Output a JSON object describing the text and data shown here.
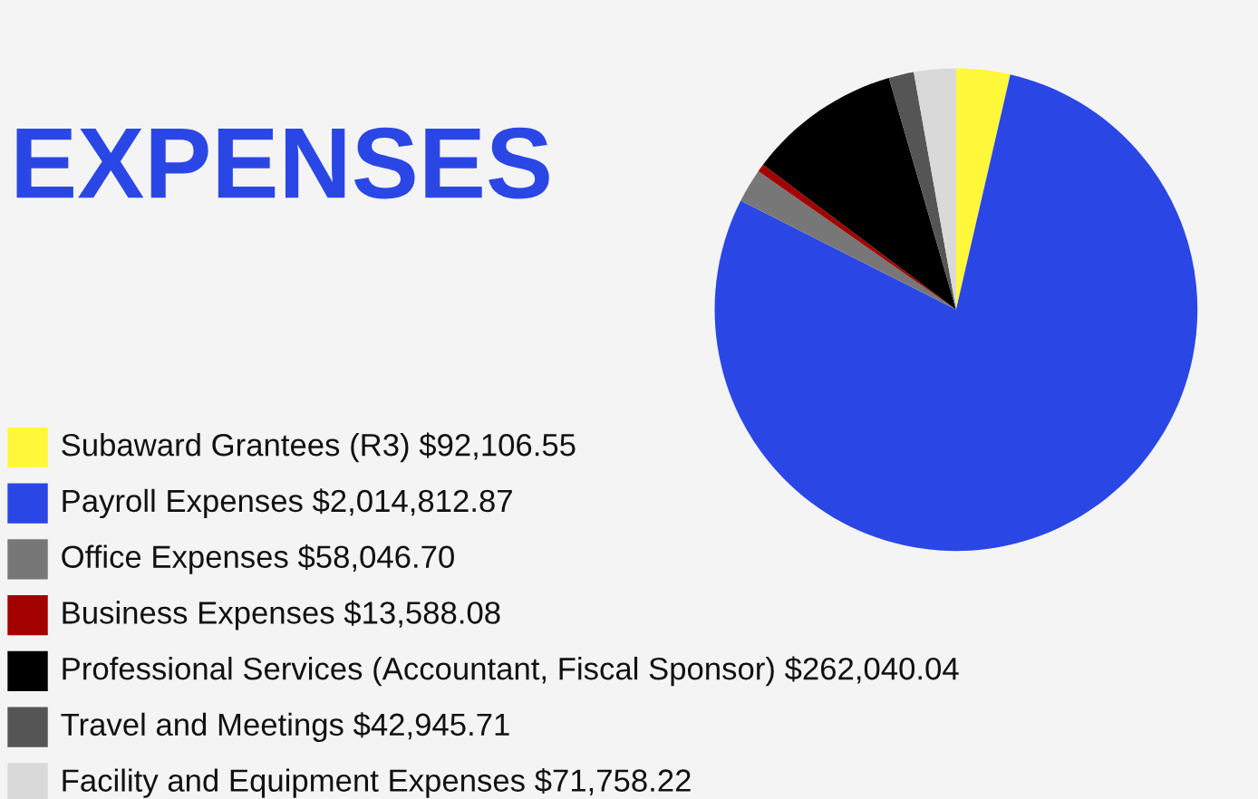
{
  "chart_data": {
    "type": "pie",
    "title": "EXPENSES",
    "categories": [
      "Subaward Grantees (R3)",
      "Payroll Expenses",
      "Office Expenses",
      "Business Expenses",
      "Professional Services (Accountant, Fiscal Sponsor)",
      "Travel and Meetings",
      "Facility and Equipment Expenses"
    ],
    "values": [
      92106.55,
      2014812.87,
      58046.7,
      13588.08,
      262040.04,
      42945.71,
      71758.22
    ],
    "value_labels": [
      "$92,106.55",
      "$2,014,812.87",
      "$58,046.70",
      "$13,588.08",
      "$262,040.04",
      "$42,945.71",
      "$71,758.22"
    ],
    "colors": [
      "#fff83a",
      "#2a47e6",
      "#777777",
      "#a30000",
      "#000000",
      "#555555",
      "#d9d9d9"
    ],
    "legend": "bottom left"
  }
}
